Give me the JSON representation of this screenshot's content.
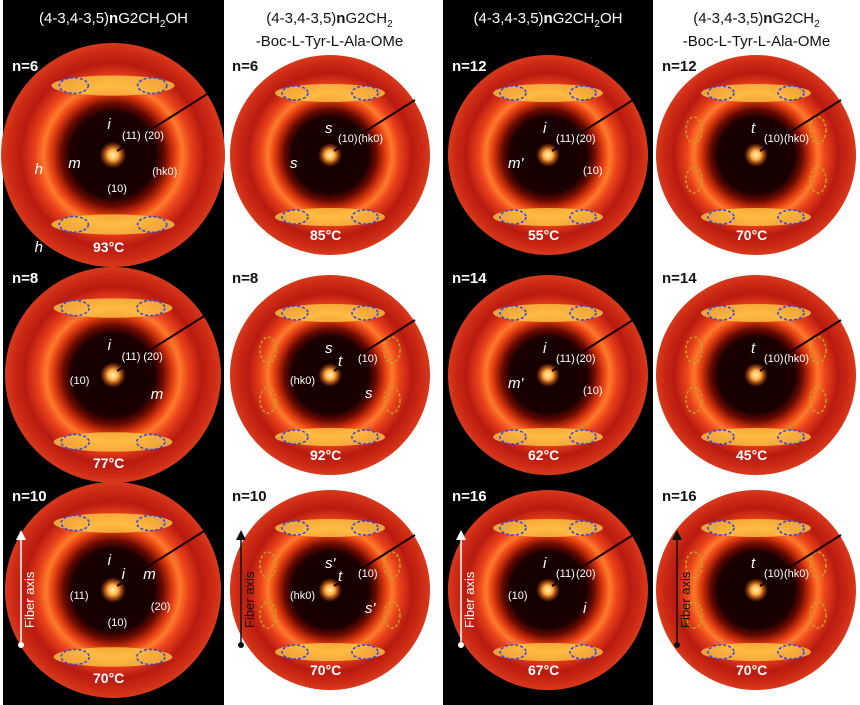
{
  "columns": [
    {
      "id": "c1",
      "header": {
        "prefix": "(4-3,4-3,5)",
        "bold": "n",
        "rest": "G2CH",
        "sub": "2",
        "tail": "OH",
        "line2": ""
      },
      "panels": [
        {
          "n": "n=6",
          "temp": "93°C",
          "labels": [
            "i",
            "(11)",
            "(20)",
            "m",
            "(hk0)",
            "(10)",
            "h",
            "h"
          ]
        },
        {
          "n": "n=8",
          "temp": "77°C",
          "labels": [
            "i",
            "(11)",
            "(20)",
            "(10)",
            "m"
          ]
        },
        {
          "n": "n=10",
          "temp": "70°C",
          "labels": [
            "i",
            "i",
            "m",
            "(11)",
            "(20)",
            "(10)"
          ]
        }
      ]
    },
    {
      "id": "c2",
      "header": {
        "prefix": "(4-3,4-3,5)",
        "bold": "n",
        "rest": "G2CH",
        "sub": "2",
        "tail": "",
        "line2": "-Boc-L-Tyr-L-Ala-OMe"
      },
      "panels": [
        {
          "n": "n=6",
          "temp": "85°C",
          "labels": [
            "s",
            "(10)",
            "(hk0)",
            "s"
          ]
        },
        {
          "n": "n=8",
          "temp": "92°C",
          "labels": [
            "s",
            "t",
            "(10)",
            "(hk0)",
            "s"
          ]
        },
        {
          "n": "n=10",
          "temp": "70°C",
          "labels": [
            "s'",
            "t",
            "(10)",
            "(hk0)",
            "s'"
          ]
        }
      ]
    },
    {
      "id": "c3",
      "header": {
        "prefix": "(4-3,4-3,5)",
        "bold": "n",
        "rest": "G2CH",
        "sub": "2",
        "tail": "OH",
        "line2": ""
      },
      "panels": [
        {
          "n": "n=12",
          "temp": "55°C",
          "labels": [
            "i",
            "(11)",
            "(20)",
            "m'",
            "(10)"
          ]
        },
        {
          "n": "n=14",
          "temp": "62°C",
          "labels": [
            "i",
            "(11)",
            "(20)",
            "m'",
            "(10)"
          ]
        },
        {
          "n": "n=16",
          "temp": "67°C",
          "labels": [
            "i",
            "(11)",
            "(20)",
            "(10)",
            "i"
          ]
        }
      ]
    },
    {
      "id": "c4",
      "header": {
        "prefix": "(4-3,4-3,5)",
        "bold": "n",
        "rest": "G2CH",
        "sub": "2",
        "tail": "",
        "line2": "-Boc-L-Tyr-L-Ala-OMe"
      },
      "panels": [
        {
          "n": "n=12",
          "temp": "70°C",
          "labels": [
            "t",
            "(10)",
            "(hk0)"
          ]
        },
        {
          "n": "n=14",
          "temp": "45°C",
          "labels": [
            "t",
            "(10)",
            "(hk0)"
          ]
        },
        {
          "n": "n=16",
          "temp": "70°C",
          "labels": [
            "t",
            "(10)",
            "(hk0)"
          ]
        }
      ]
    }
  ],
  "axis_label": "Fiber axis"
}
